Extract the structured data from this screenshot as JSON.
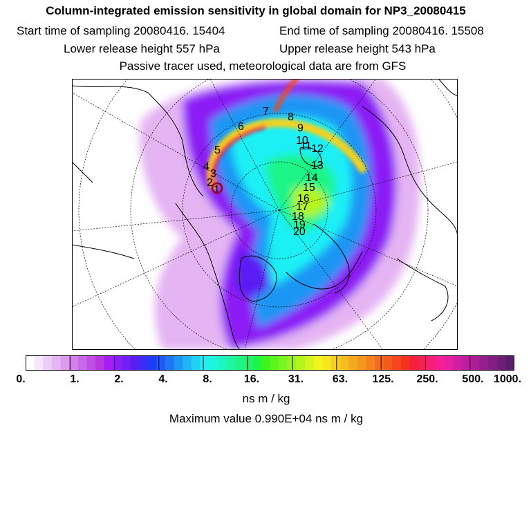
{
  "header": {
    "title": "Column-integrated emission sensitivity in global domain for NP3_20080415",
    "start_time": "Start time of sampling 20080416. 15404",
    "end_time": "End time of sampling 20080416. 15508",
    "lower_height": "Lower release height  557 hPa",
    "upper_height": "Upper release height  543 hPa",
    "tracer_note": "Passive tracer used, meteorological data are from GFS"
  },
  "map": {
    "track_labels": [
      "1",
      "2",
      "3",
      "4",
      "5",
      "6",
      "7",
      "8",
      "9",
      "10",
      "11",
      "12",
      "13",
      "14",
      "15",
      "16",
      "17",
      "18",
      "19",
      "20"
    ]
  },
  "colorbar": {
    "tick_labels": [
      "0.",
      "1.",
      "2.",
      "4.",
      "8.",
      "16.",
      "31.",
      "63.",
      "125.",
      "250.",
      "500.",
      "1000."
    ],
    "colors": [
      "#ffffff",
      "#f6e6fb",
      "#edcdf7",
      "#e4b4f3",
      "#db9bef",
      "#d282eb",
      "#c869e7",
      "#bf50e3",
      "#b637df",
      "#a51ef5",
      "#8c1ef5",
      "#731ef5",
      "#5a1ef5",
      "#3c2df5",
      "#1e3cf5",
      "#1e5af5",
      "#1e78f5",
      "#1e96f5",
      "#1eb4f5",
      "#1ed2f5",
      "#1ef0f5",
      "#1ef5e1",
      "#1ef5c3",
      "#1ef5a5",
      "#1ef587",
      "#1ef569",
      "#1ef54b",
      "#3cf51e",
      "#5af51e",
      "#78f51e",
      "#96f51e",
      "#b4f51e",
      "#d2f51e",
      "#f0f51e",
      "#f5e61e",
      "#f5d21e",
      "#f5be1e",
      "#f5aa1e",
      "#f5961e",
      "#f5821e",
      "#f56e1e",
      "#f55a1e",
      "#f5461e",
      "#f5321e",
      "#f51e3c",
      "#f51e5a",
      "#f51e78",
      "#f51e96",
      "#e61ea0",
      "#d21ea0",
      "#be1ea0",
      "#aa1e96",
      "#961e8c",
      "#821e82",
      "#6e1e78",
      "#5a1e6e"
    ]
  },
  "unit": "ns m / kg",
  "max_value": "Maximum value  0.990E+04 ns m / kg"
}
